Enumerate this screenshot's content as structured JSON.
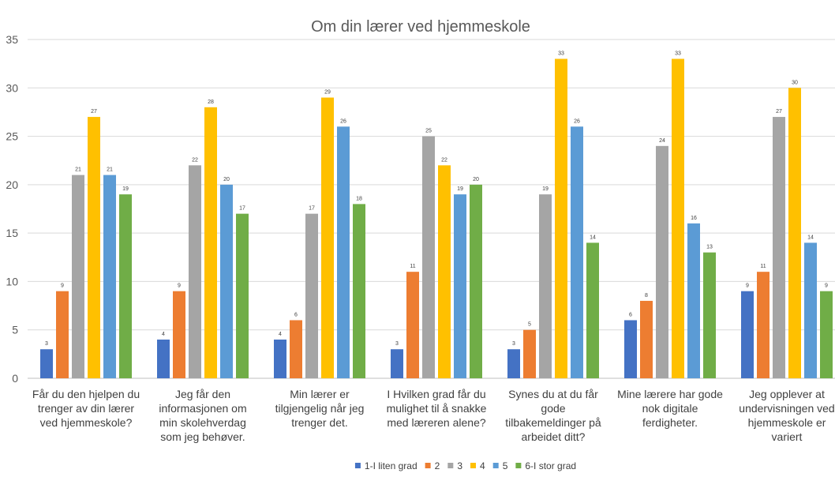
{
  "chart_data": {
    "type": "bar",
    "title": "Om din lærer ved hjemmeskole",
    "xlabel": "",
    "ylabel": "",
    "ylim": [
      0,
      35
    ],
    "ytick_step": 5,
    "grid": true,
    "legend_position": "bottom",
    "categories": [
      [
        "Får du den hjelpen du",
        "trenger av din lærer",
        "ved hjemmeskole?"
      ],
      [
        "Jeg får den",
        "informasjonen om",
        "min skolehverdag",
        "som jeg behøver."
      ],
      [
        "Min lærer er",
        "tilgjengelig når jeg",
        "trenger det."
      ],
      [
        "I Hvilken grad får du",
        "mulighet til å snakke",
        "med læreren alene?"
      ],
      [
        "Synes du at du får",
        "gode",
        "tilbakemeldinger på",
        "arbeidet ditt?"
      ],
      [
        "Mine lærere har gode",
        "nok digitale",
        "ferdigheter."
      ],
      [
        "Jeg opplever at",
        "undervisningen ved",
        "hjemmeskole er",
        "variert"
      ]
    ],
    "series": [
      {
        "name": "1-I liten grad",
        "color": "#4472C4",
        "values": [
          3,
          4,
          4,
          3,
          3,
          6,
          9
        ]
      },
      {
        "name": "2",
        "color": "#ED7D31",
        "values": [
          9,
          9,
          6,
          11,
          5,
          8,
          11
        ]
      },
      {
        "name": "3",
        "color": "#A5A5A5",
        "values": [
          21,
          22,
          17,
          25,
          19,
          24,
          27
        ]
      },
      {
        "name": "4",
        "color": "#FFC000",
        "values": [
          27,
          28,
          29,
          22,
          33,
          33,
          30
        ]
      },
      {
        "name": "5",
        "color": "#5B9BD5",
        "values": [
          21,
          20,
          26,
          19,
          26,
          16,
          14
        ]
      },
      {
        "name": "6-I stor grad",
        "color": "#70AD47",
        "values": [
          19,
          17,
          18,
          20,
          14,
          13,
          9
        ]
      }
    ]
  }
}
